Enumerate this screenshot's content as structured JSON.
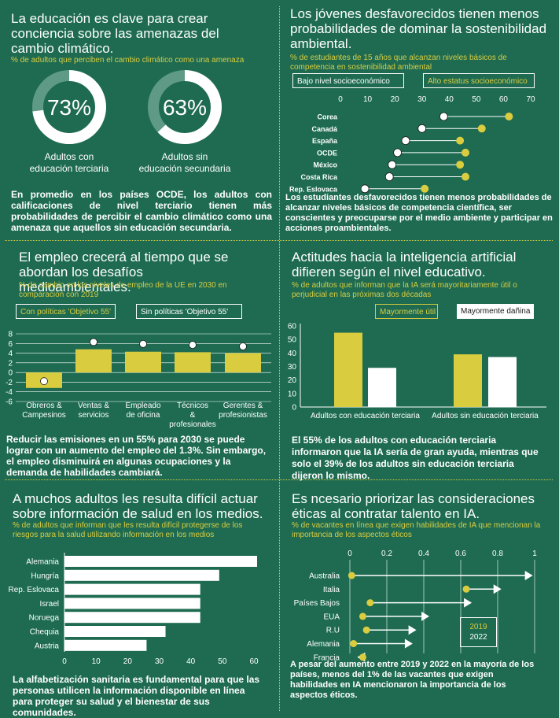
{
  "colors": {
    "background": "#1e6b52",
    "yellow": "#d9cc3f",
    "white": "#ffffff",
    "ring_track": "#5e9a86"
  },
  "panel1": {
    "title": "La educación es clave para crear conciencia sobre las amenazas del cambio climático.",
    "subtitle": "% de adultos que perciben el cambio climático como una amenaza",
    "rings": [
      {
        "value": 73,
        "label": "73%",
        "caption": "Adultos con educación terciaria"
      },
      {
        "value": 63,
        "label": "63%",
        "caption": "Adultos sin educación secundaria"
      }
    ],
    "body": "En promedio en los países OCDE, los adultos con calificaciones de nivel terciario tienen más probabilidades de percibir el cambio climático como una amenaza que aquellos sin educación secundaria."
  },
  "panel2": {
    "title": "Los jóvenes desfavorecidos tienen menos probabilidades de dominar la sostenibilidad ambiental.",
    "subtitle": "% de estudiantes de 15 años que alcanzan niveles básicos de competencia en sostenibilidad ambiental",
    "legend_low": "Bajo nivel socioeconómico",
    "legend_high": "Alto estatus socioeconómico",
    "body": "Los estudiantes desfavorecidos tienen menos probabilidades de alcanzar niveles básicos de competencia científica, ser conscientes y preocuparse por el medio ambiente y participar en acciones proambientales."
  },
  "panel3": {
    "title": "El empleo crecerá al tiempo que se abordan los desafíos medioambientales.",
    "subtitle": "% de cambio en los niveles de empleo de la UE en 2030 en comparación con 2019",
    "legend_policy": "Con políticas 'Objetivo 55'",
    "legend_nopolicy": "Sin políticas 'Objetivo 55'",
    "body": "Reducir las emisiones en un 55% para 2030 se puede lograr con un aumento del empleo del 1.3%. Sin embargo, el empleo disminuirá en algunas ocupaciones y la demanda de habilidades cambiará."
  },
  "panel4": {
    "title": "Actitudes hacia la inteligencia artificial difieren según el nivel educativo.",
    "subtitle": "% de adultos que informan que la IA será mayoritariamente útil o perjudicial en las próximas dos décadas",
    "legend_useful": "Mayormente útil",
    "legend_harmful": "Mayormente dañina",
    "body": "El 55% de los adultos con educación terciaria informaron que la IA sería de gran ayuda, mientras que solo el 39% de los adultos sin educación terciaria dijeron lo mismo."
  },
  "panel5": {
    "title": "A muchos adultos les resulta difícil actuar sobre información de salud en los medios.",
    "subtitle": "% de adultos que informan que les resulta difícil protegerse de los riesgos para la salud utilizando información en los medios",
    "body": "La alfabetización sanitaria es fundamental para que las personas utilicen la información disponible en línea para proteger su salud y el bienestar de sus comunidades."
  },
  "panel6": {
    "title": "Es ncesario priorizar las consideraciones éticas al contratar talento en IA.",
    "subtitle": "% de vacantes en línea que exigen habilidades de IA que mencionan la importancia de los aspectos éticos",
    "legend_2019": "2019",
    "legend_2022": "2022",
    "body": "A pesar del aumento entre 2019 y 2022 en la mayoría de los países, menos del 1% de las vacantes que exigen habilidades en IA mencionaron la importancia de los aspectos éticos."
  },
  "chart_data": [
    {
      "type": "donut",
      "categories": [
        "Adultos con educación terciaria",
        "Adultos sin educación secundaria"
      ],
      "values": [
        73,
        63
      ]
    },
    {
      "type": "dumbbell",
      "categories": [
        "Corea",
        "Canadá",
        "España",
        "OCDE",
        "México",
        "Costa Rica",
        "Rep. Eslovaca"
      ],
      "series": [
        {
          "name": "Bajo nivel socioeconómico",
          "values": [
            38,
            30,
            24,
            21,
            19,
            18,
            9
          ]
        },
        {
          "name": "Alto estatus socioeconómico",
          "values": [
            62,
            52,
            44,
            46,
            44,
            46,
            31
          ]
        }
      ],
      "xticks": [
        0,
        10,
        20,
        30,
        40,
        50,
        60,
        70
      ],
      "xlim": [
        0,
        70
      ]
    },
    {
      "type": "bar",
      "categories": [
        "Obreros & Campesinos",
        "Ventas & servicios",
        "Empleado de oficina",
        "Técnicos & profesionales",
        "Gerentes & profesionistas"
      ],
      "series": [
        {
          "name": "Con políticas 'Objetivo 55",
          "values": [
            -3.2,
            4.8,
            4.3,
            4.2,
            4.0
          ]
        },
        {
          "name": "Sin políticas 'Objetivo 55'",
          "values": [
            -1.8,
            6.3,
            5.9,
            5.7,
            5.4
          ]
        }
      ],
      "yticks": [
        8,
        6,
        4,
        2,
        0,
        -2,
        -4,
        -6
      ],
      "ylim": [
        -6,
        8
      ]
    },
    {
      "type": "bar",
      "categories": [
        "Adultos con educación terciaria",
        "Adultos sin educación terciaria"
      ],
      "series": [
        {
          "name": "Mayormente útil",
          "values": [
            55,
            39
          ]
        },
        {
          "name": "Mayormente dañina",
          "values": [
            29,
            37
          ]
        }
      ],
      "yticks": [
        60,
        50,
        40,
        30,
        20,
        10,
        0
      ],
      "ylim": [
        0,
        60
      ]
    },
    {
      "type": "bar",
      "orientation": "horizontal",
      "categories": [
        "Alemania",
        "Hungría",
        "Rep. Eslovaca",
        "Israel",
        "Noruega",
        "Chequia",
        "Austria"
      ],
      "values": [
        61,
        49,
        43,
        43,
        43,
        32,
        26
      ],
      "xticks": [
        0,
        10,
        20,
        30,
        40,
        50,
        60
      ],
      "xlim": [
        0,
        60
      ]
    },
    {
      "type": "arrow",
      "categories": [
        "Australia",
        "Italia",
        "Países Bajos",
        "EUA",
        "R.U",
        "Alemania",
        "Francia"
      ],
      "series": [
        {
          "name": "2019",
          "values": [
            0.01,
            0.63,
            0.11,
            0.07,
            0.09,
            0.02,
            0.07
          ]
        },
        {
          "name": "2022",
          "values": [
            0.99,
            0.82,
            0.66,
            0.43,
            0.36,
            0.34,
            0.04
          ]
        }
      ],
      "xticks": [
        "0",
        "0.2",
        "0.4",
        "0.6",
        "0.8",
        "1"
      ],
      "xlim": [
        0,
        1
      ]
    }
  ]
}
